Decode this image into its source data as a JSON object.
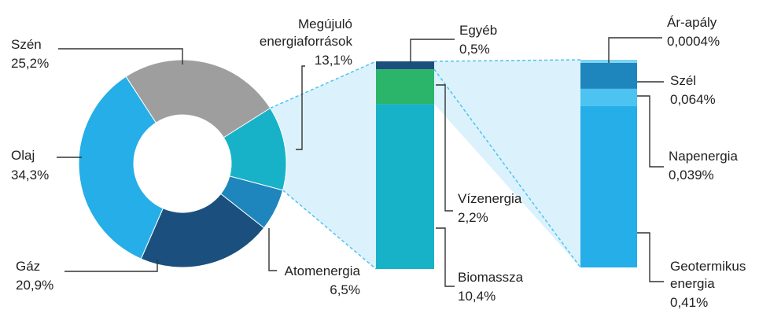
{
  "chart_data": [
    {
      "type": "pie",
      "variant": "donut",
      "slices": [
        {
          "name": "Szén",
          "value": 25.2,
          "label": "25,2%",
          "color": "#9e9e9e"
        },
        {
          "name": "Megújuló energiaforrások",
          "value": 13.1,
          "label": "13,1%",
          "color": "#18b2c8"
        },
        {
          "name": "Atomenergia",
          "value": 6.5,
          "label": "6,5%",
          "color": "#1e86bd"
        },
        {
          "name": "Gáz",
          "value": 20.9,
          "label": "20,9%",
          "color": "#1b4f7e"
        },
        {
          "name": "Olaj",
          "value": 34.3,
          "label": "34,3%",
          "color": "#25aee8"
        }
      ]
    },
    {
      "type": "bar",
      "variant": "stacked-100",
      "series": [
        {
          "name": "Egyéb",
          "value": 0.5,
          "label": "0,5%",
          "color": "#1b4f7e"
        },
        {
          "name": "Vízenergia",
          "value": 2.2,
          "label": "2,2%",
          "color": "#2bb56b"
        },
        {
          "name": "Biomassza",
          "value": 10.4,
          "label": "10,4%",
          "color": "#18b2c8"
        }
      ]
    },
    {
      "type": "bar",
      "variant": "stacked-100",
      "series": [
        {
          "name": "Ár-apály",
          "value": 0.0004,
          "label": "0,0004%",
          "color": "#7fd3f3"
        },
        {
          "name": "Szél",
          "value": 0.064,
          "label": "0,064%",
          "color": "#1e86bd"
        },
        {
          "name": "Napenergia",
          "value": 0.039,
          "label": "0,039%",
          "color": "#4cc3f0"
        },
        {
          "name": "Geotermikus energia",
          "value": 0.41,
          "label": "0,41%",
          "color": "#25aee8"
        }
      ]
    }
  ],
  "labels": {
    "szen_name": "Szén",
    "szen_val": "25,2%",
    "meg_name_1": "Megújuló",
    "meg_name_2": "energiaforrások",
    "meg_val": "13,1%",
    "olaj_name": "Olaj",
    "olaj_val": "34,3%",
    "gaz_name": "Gáz",
    "gaz_val": "20,9%",
    "atom_name": "Atomenergia",
    "atom_val": "6,5%",
    "egyeb_name": "Egyéb",
    "egyeb_val": "0,5%",
    "viz_name": "Vízenergia",
    "viz_val": "2,2%",
    "bio_name": "Biomassza",
    "bio_val": "10,4%",
    "arapaly_name": "Ár-apály",
    "arapaly_val": "0,0004%",
    "szel_name": "Szél",
    "szel_val": "0,064%",
    "nap_name": "Napenergia",
    "nap_val": "0,039%",
    "geo_name_1": "Geotermikus",
    "geo_name_2": "energia",
    "geo_val": "0,41%"
  },
  "colors": {
    "funnel": "#cfeefb",
    "funnel_edge": "#4cc3f0"
  }
}
